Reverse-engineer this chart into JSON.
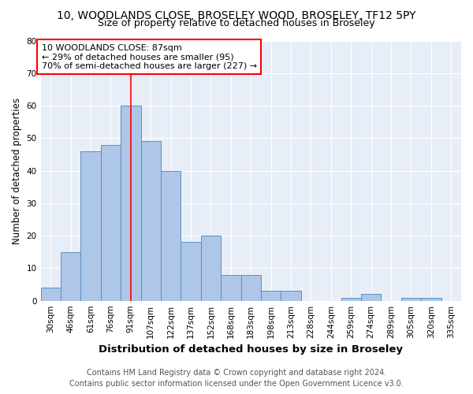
{
  "title": "10, WOODLANDS CLOSE, BROSELEY WOOD, BROSELEY, TF12 5PY",
  "subtitle": "Size of property relative to detached houses in Broseley",
  "xlabel": "Distribution of detached houses by size in Broseley",
  "ylabel": "Number of detached properties",
  "categories": [
    "30sqm",
    "46sqm",
    "61sqm",
    "76sqm",
    "91sqm",
    "107sqm",
    "122sqm",
    "137sqm",
    "152sqm",
    "168sqm",
    "183sqm",
    "198sqm",
    "213sqm",
    "228sqm",
    "244sqm",
    "259sqm",
    "274sqm",
    "289sqm",
    "305sqm",
    "320sqm",
    "335sqm"
  ],
  "values": [
    4,
    15,
    46,
    48,
    60,
    49,
    40,
    18,
    20,
    8,
    8,
    3,
    3,
    0,
    0,
    1,
    2,
    0,
    1,
    1,
    0
  ],
  "bar_color": "#aec6e8",
  "bar_edge_color": "#5a8fc2",
  "red_line_index": 4,
  "annotation_line1": "10 WOODLANDS CLOSE: 87sqm",
  "annotation_line2": "← 29% of detached houses are smaller (95)",
  "annotation_line3": "70% of semi-detached houses are larger (227) →",
  "annotation_box_color": "white",
  "annotation_box_edge": "red",
  "red_line_color": "red",
  "ylim": [
    0,
    80
  ],
  "yticks": [
    0,
    10,
    20,
    30,
    40,
    50,
    60,
    70,
    80
  ],
  "footer_line1": "Contains HM Land Registry data © Crown copyright and database right 2024.",
  "footer_line2": "Contains public sector information licensed under the Open Government Licence v3.0.",
  "bg_color": "#e8eef8",
  "title_fontsize": 10,
  "subtitle_fontsize": 9,
  "xlabel_fontsize": 9.5,
  "ylabel_fontsize": 8.5,
  "tick_fontsize": 7.5,
  "annotation_fontsize": 8,
  "footer_fontsize": 7
}
